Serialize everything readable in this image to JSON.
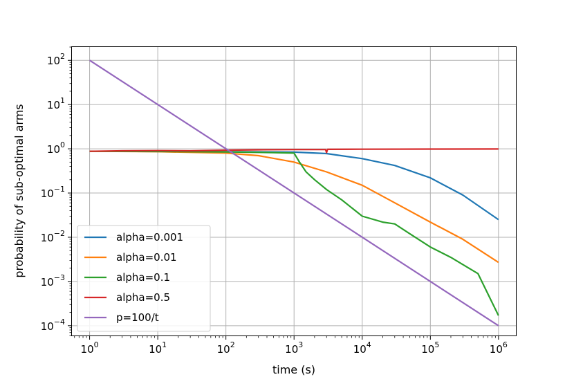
{
  "chart_data": {
    "type": "line",
    "title": "",
    "xlabel": "time (s)",
    "ylabel": "probability of sub-optimal arms",
    "xscale": "log",
    "yscale": "log",
    "xlim": [
      0.55,
      1800000
    ],
    "ylim": [
      6e-05,
      200
    ],
    "grid": true,
    "legend_position": "lower-left",
    "x_ticks": [
      {
        "value": 1,
        "base": "10",
        "exp": "0"
      },
      {
        "value": 10,
        "base": "10",
        "exp": "1"
      },
      {
        "value": 100,
        "base": "10",
        "exp": "2"
      },
      {
        "value": 1000,
        "base": "10",
        "exp": "3"
      },
      {
        "value": 10000,
        "base": "10",
        "exp": "4"
      },
      {
        "value": 100000,
        "base": "10",
        "exp": "5"
      },
      {
        "value": 1000000,
        "base": "10",
        "exp": "6"
      }
    ],
    "y_ticks": [
      {
        "value": 0.0001,
        "base": "10",
        "exp": "−4"
      },
      {
        "value": 0.001,
        "base": "10",
        "exp": "−3"
      },
      {
        "value": 0.01,
        "base": "10",
        "exp": "−2"
      },
      {
        "value": 0.1,
        "base": "10",
        "exp": "−1"
      },
      {
        "value": 1,
        "base": "10",
        "exp": "0"
      },
      {
        "value": 10,
        "base": "10",
        "exp": "1"
      },
      {
        "value": 100,
        "base": "10",
        "exp": "2"
      }
    ],
    "series": [
      {
        "name": "alpha=0.001",
        "color": "#1f77b4",
        "points": [
          [
            1,
            0.88
          ],
          [
            10,
            0.87
          ],
          [
            100,
            0.86
          ],
          [
            1000,
            0.84
          ],
          [
            3000,
            0.78
          ],
          [
            10000,
            0.6
          ],
          [
            30000,
            0.42
          ],
          [
            100000,
            0.22
          ],
          [
            300000,
            0.09
          ],
          [
            1000000,
            0.025
          ]
        ]
      },
      {
        "name": "alpha=0.01",
        "color": "#ff7f0e",
        "points": [
          [
            1,
            0.88
          ],
          [
            10,
            0.86
          ],
          [
            100,
            0.8
          ],
          [
            300,
            0.7
          ],
          [
            1000,
            0.5
          ],
          [
            3000,
            0.3
          ],
          [
            10000,
            0.15
          ],
          [
            30000,
            0.06
          ],
          [
            100000,
            0.022
          ],
          [
            300000,
            0.009
          ],
          [
            1000000,
            0.0027
          ]
        ]
      },
      {
        "name": "alpha=0.1",
        "color": "#2ca02c",
        "points": [
          [
            1,
            0.88
          ],
          [
            10,
            0.87
          ],
          [
            100,
            0.85
          ],
          [
            500,
            0.82
          ],
          [
            1000,
            0.8
          ],
          [
            1200,
            0.5
          ],
          [
            1500,
            0.3
          ],
          [
            2000,
            0.2
          ],
          [
            3000,
            0.12
          ],
          [
            5000,
            0.07
          ],
          [
            10000,
            0.03
          ],
          [
            20000,
            0.022
          ],
          [
            30000,
            0.02
          ],
          [
            50000,
            0.012
          ],
          [
            100000,
            0.006
          ],
          [
            200000,
            0.0035
          ],
          [
            500000,
            0.0015
          ],
          [
            1000000,
            0.00017
          ]
        ]
      },
      {
        "name": "alpha=0.5",
        "color": "#d62728",
        "points": [
          [
            1,
            0.88
          ],
          [
            3,
            0.9
          ],
          [
            10,
            0.91
          ],
          [
            30,
            0.9
          ],
          [
            100,
            0.93
          ],
          [
            300,
            0.95
          ],
          [
            1000,
            0.96
          ],
          [
            2900,
            0.96
          ],
          [
            3000,
            0.82
          ],
          [
            3100,
            0.97
          ],
          [
            10000,
            0.98
          ],
          [
            100000,
            0.985
          ],
          [
            1000000,
            0.99
          ]
        ]
      },
      {
        "name": "p=100/t",
        "color": "#9467bd",
        "points": [
          [
            1,
            100
          ],
          [
            1000000,
            0.0001
          ]
        ]
      }
    ]
  }
}
